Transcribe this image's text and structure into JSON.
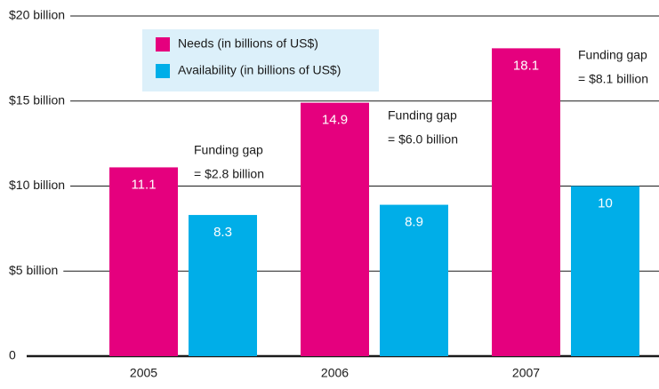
{
  "chart_data": {
    "type": "bar",
    "categories": [
      "2005",
      "2006",
      "2007"
    ],
    "series": [
      {
        "name": "Needs (in billions of US$)",
        "color": "#e5007e",
        "values": [
          11.1,
          14.9,
          18.1
        ]
      },
      {
        "name": "Availability (in billions of US$)",
        "color": "#00aee8",
        "values": [
          8.3,
          8.9,
          10
        ]
      }
    ],
    "ylim": [
      0,
      20
    ],
    "yticks": [
      0,
      {
        "value": 5,
        "label": "$5 billion"
      },
      {
        "value": 10,
        "label": "$10 billion"
      },
      {
        "value": 15,
        "label": "$15 billion"
      },
      {
        "value": 20,
        "label": "$20 billion"
      }
    ],
    "grid": true,
    "legend": "top-left",
    "annotations": [
      [
        "Funding gap",
        "= $2.8 billion"
      ],
      [
        "Funding gap",
        "= $6.0 billion"
      ],
      [
        "Funding gap",
        "= $8.1 billion"
      ]
    ]
  }
}
